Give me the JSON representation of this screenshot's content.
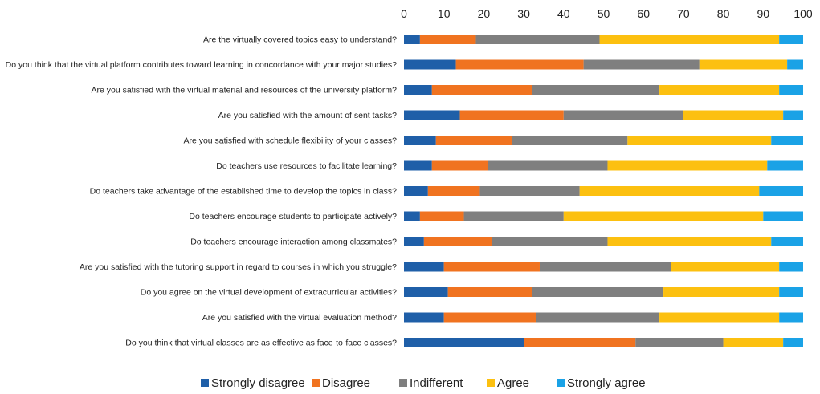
{
  "chart_data": {
    "type": "bar",
    "orientation": "horizontal",
    "stacked": true,
    "title": "",
    "xlabel": "",
    "ylabel": "",
    "xlim": [
      0,
      100
    ],
    "ticks": [
      "0",
      "10",
      "20",
      "30",
      "40",
      "50",
      "60",
      "70",
      "80",
      "90",
      "100"
    ],
    "tick_values": [
      0,
      10,
      20,
      30,
      40,
      50,
      60,
      70,
      80,
      90,
      100
    ],
    "legend_position": "bottom",
    "grid": false,
    "categories": [
      "Are the virtually covered topics easy to understand?",
      "Do you think that the virtual platform contributes toward learning in concordance with your major studies?",
      "Are you satisfied with the virtual material and resources of the university platform?",
      "Are you satisfied with the amount of sent tasks?",
      "Are you satisfied with schedule flexibility of your classes?",
      "Do teachers use resources to facilitate learning?",
      "Do teachers take advantage of the established time to develop the topics in class?",
      "Do teachers encourage students to participate actively?",
      "Do teachers encourage interaction among classmates?",
      "Are you satisfied with the tutoring support in regard to courses in which you struggle?",
      "Do you agree on the virtual development of extracurricular activities?",
      "Are you satisfied with the virtual evaluation method?",
      "Do you think that virtual classes are as effective as face-to-face classes?"
    ],
    "series": [
      {
        "name": "Strongly disagree",
        "color": "#1f5fa8",
        "values": [
          4,
          13,
          7,
          14,
          8,
          7,
          6,
          4,
          5,
          10,
          11,
          10,
          30
        ]
      },
      {
        "name": "Disagree",
        "color": "#f07320",
        "values": [
          14,
          32,
          25,
          26,
          19,
          14,
          13,
          11,
          17,
          24,
          21,
          23,
          28
        ]
      },
      {
        "name": "Indifferent",
        "color": "#7f7f7f",
        "values": [
          31,
          29,
          32,
          30,
          29,
          30,
          25,
          25,
          29,
          33,
          33,
          31,
          22
        ]
      },
      {
        "name": "Agree",
        "color": "#fcc010",
        "values": [
          45,
          22,
          30,
          25,
          36,
          40,
          45,
          50,
          41,
          27,
          29,
          30,
          15
        ]
      },
      {
        "name": "Strongly agree",
        "color": "#1aa2e6",
        "values": [
          6,
          4,
          6,
          5,
          8,
          9,
          11,
          10,
          8,
          6,
          6,
          6,
          5
        ]
      }
    ]
  }
}
